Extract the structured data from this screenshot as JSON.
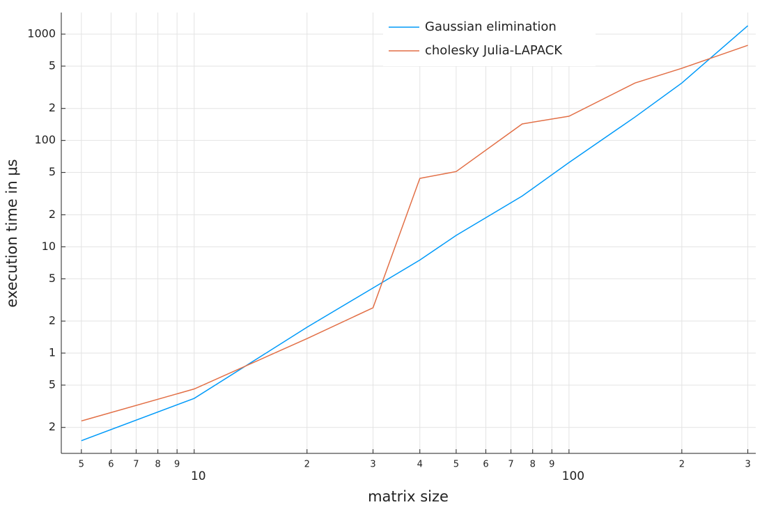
{
  "chart_data": {
    "type": "line",
    "xlabel": "matrix size",
    "ylabel": "execution time in μs",
    "x": [
      5,
      10,
      20,
      30,
      40,
      50,
      75,
      100,
      150,
      200,
      300
    ],
    "series": [
      {
        "name": "Gaussian elimination",
        "color": "#009af9",
        "values": [
          0.15,
          0.375,
          1.75,
          4.1,
          7.5,
          12.8,
          30,
          62,
          166,
          347,
          1200
        ]
      },
      {
        "name": "cholesky Julia-LAPACK",
        "color": "#e26f46",
        "values": [
          0.23,
          0.46,
          1.37,
          2.67,
          44,
          51,
          143,
          169,
          347,
          477,
          785
        ]
      }
    ],
    "xscale": "log",
    "yscale": "log",
    "xlim": [
      4.42,
      315
    ],
    "ylim": [
      0.114,
      1596
    ],
    "xticks": [
      5,
      6,
      7,
      8,
      9,
      10,
      {
        "value": 20,
        "label": "2"
      },
      {
        "value": 30,
        "label": "3"
      },
      {
        "value": 40,
        "label": "4"
      },
      {
        "value": 50,
        "label": "5"
      },
      {
        "value": 60,
        "label": "6"
      },
      {
        "value": 70,
        "label": "7"
      },
      {
        "value": 80,
        "label": "8"
      },
      {
        "value": 90,
        "label": "9"
      },
      100,
      {
        "value": 200,
        "label": "2"
      },
      {
        "value": 300,
        "label": "3"
      }
    ],
    "yticks": [
      {
        "value": 0.2,
        "label": "2"
      },
      {
        "value": 0.5,
        "label": "5"
      },
      1,
      {
        "value": 2,
        "label": "2"
      },
      {
        "value": 5,
        "label": "5"
      },
      10,
      {
        "value": 20,
        "label": "2"
      },
      {
        "value": 50,
        "label": "5"
      },
      100,
      {
        "value": 200,
        "label": "2"
      },
      {
        "value": 500,
        "label": "5"
      },
      1000
    ],
    "grid": true,
    "legend": "top-right"
  }
}
